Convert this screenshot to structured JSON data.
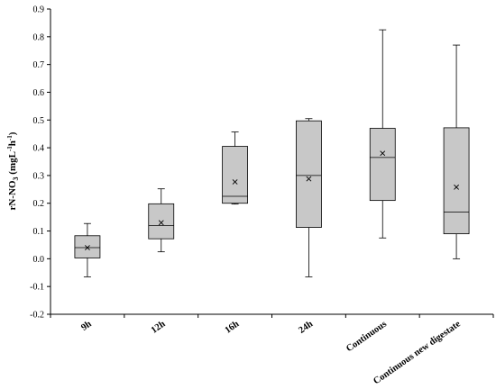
{
  "chart_data": {
    "type": "box",
    "ylabel": {
      "main": "rN-NO",
      "subscript": "3",
      "units_open": " (mgL",
      "sup1": "-1",
      "mid": "h",
      "sup2": "-1",
      "units_close": ")"
    },
    "ylim": [
      -0.2,
      0.9
    ],
    "yticks": [
      "-0.2",
      "-0.1",
      "0.0",
      "0.1",
      "0.2",
      "0.3",
      "0.4",
      "0.5",
      "0.6",
      "0.7",
      "0.8",
      "0.9"
    ],
    "ytick_values": [
      -0.2,
      -0.1,
      0.0,
      0.1,
      0.2,
      0.3,
      0.4,
      0.5,
      0.6,
      0.7,
      0.8,
      0.9
    ],
    "grid": false,
    "box_color": "#c8c8c8",
    "categories": [
      "9h",
      "12h",
      "16h",
      "24h",
      "Continuous",
      "Continuous new digestate"
    ],
    "boxes": [
      {
        "min": -0.065,
        "q1": 0.003,
        "median": 0.04,
        "q3": 0.083,
        "max": 0.127,
        "mean": 0.04
      },
      {
        "min": 0.025,
        "q1": 0.072,
        "median": 0.12,
        "q3": 0.198,
        "max": 0.252,
        "mean": 0.13
      },
      {
        "min": 0.197,
        "q1": 0.2,
        "median": 0.225,
        "q3": 0.405,
        "max": 0.457,
        "mean": 0.277
      },
      {
        "min": -0.065,
        "q1": 0.113,
        "median": 0.3,
        "q3": 0.497,
        "max": 0.505,
        "mean": 0.288
      },
      {
        "min": 0.075,
        "q1": 0.21,
        "median": 0.365,
        "q3": 0.47,
        "max": 0.825,
        "mean": 0.38
      },
      {
        "min": 0.0,
        "q1": 0.09,
        "median": 0.168,
        "q3": 0.472,
        "max": 0.77,
        "mean": 0.258
      }
    ]
  }
}
